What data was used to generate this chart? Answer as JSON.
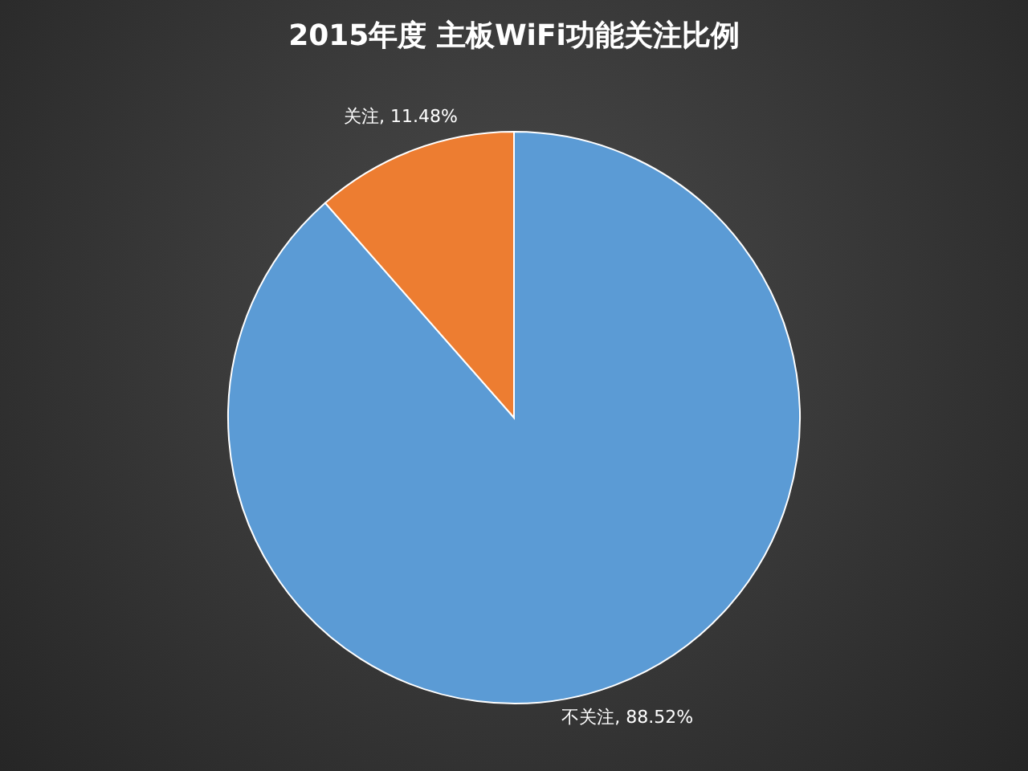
{
  "chart_data": {
    "type": "pie",
    "title": "2015年度 主板WiFi功能关注比例",
    "categories": [
      "不关注",
      "关注"
    ],
    "values": [
      88.52,
      11.48
    ],
    "value_labels": [
      "88.52%",
      "11.48%"
    ],
    "colors": [
      "#5b9bd5",
      "#ed7d31"
    ]
  }
}
